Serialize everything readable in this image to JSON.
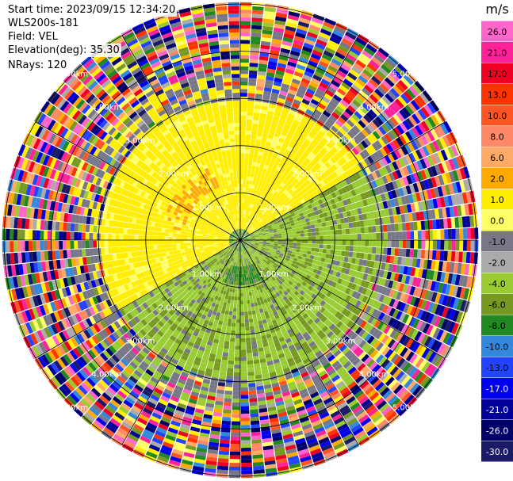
{
  "info": {
    "start_time": "Start time: 2023/09/15 12:34:20",
    "instrument": "WLS200s-181",
    "field": "Field: VEL",
    "elevation": "Elevation(deg): 35.30",
    "nrays": "NRays: 120"
  },
  "chart_data": {
    "type": "heatmap",
    "subtype": "polar-ppi",
    "field": "VEL",
    "units": "m/s",
    "nrays": 120,
    "range_max_km": 5,
    "range_rings_km": [
      1,
      2,
      3,
      4,
      5
    ],
    "ring_labels": [
      "1.00km",
      "2.00km",
      "3.00km",
      "4.00km",
      "5.00km"
    ],
    "spoke_angles_deg": [
      0,
      30,
      60,
      90,
      120,
      150,
      180,
      210,
      240,
      270,
      300,
      330
    ],
    "grid": true,
    "colorbar": {
      "label": "m/s",
      "placement": "right",
      "tick_labels": [
        "26.0",
        "21.0",
        "17.0",
        "13.0",
        "10.0",
        "8.0",
        "6.0",
        "2.0",
        "1.0",
        "0.0",
        "-1.0",
        "-2.0",
        "-4.0",
        "-6.0",
        "-8.0",
        "-10.0",
        "-13.0",
        "-17.0",
        "-21.0",
        "-26.0",
        "-30.0"
      ],
      "colors": [
        "#ff66cc",
        "#ff2299",
        "#ee0022",
        "#ff3300",
        "#ff5522",
        "#ff8866",
        "#ffaa66",
        "#ffaa00",
        "#ffee00",
        "#ffff66",
        "#777788",
        "#aaaaaa",
        "#99cc33",
        "#779922",
        "#228822",
        "#3388dd",
        "#2244ff",
        "#0000ee",
        "#000099",
        "#000066",
        "#1a1a66"
      ]
    },
    "pattern": {
      "inner_positive_sector_deg": [
        240,
        60
      ],
      "inner_negative_sector_deg": [
        60,
        240
      ],
      "clean_range_km": 3.0,
      "noise_beyond_km": 3.6
    }
  }
}
